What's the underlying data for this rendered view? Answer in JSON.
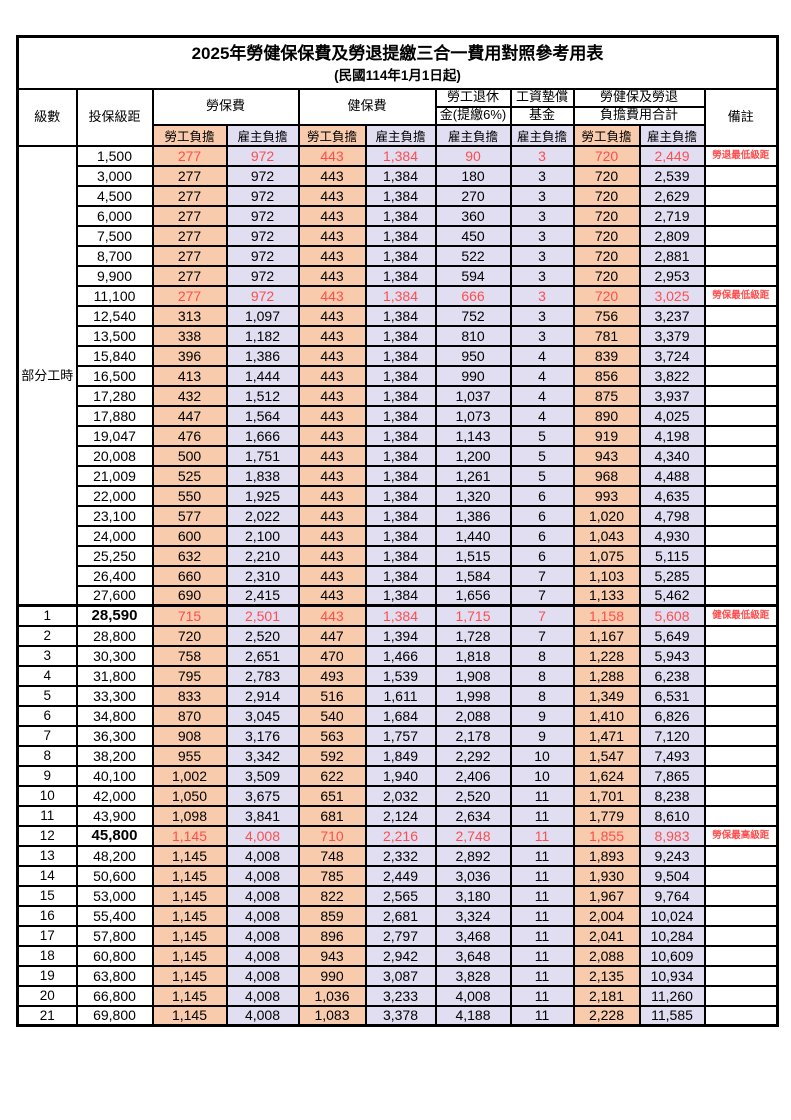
{
  "title": "2025年勞健保保費及勞退提繳三合一費用對照參考用表",
  "subtitle": "(民國114年1月1日起)",
  "columns": {
    "level": "級數",
    "bracket": "投保級距",
    "labor_ins": "勞保費",
    "health_ins": "健保費",
    "pension_l1": "勞工退休",
    "pension_l2": "金(提繳6%)",
    "wage_fund_l1": "工資墊償",
    "wage_fund_l2": "基金",
    "total_l1": "勞健保及勞退",
    "total_l2": "負擔費用合計",
    "note": "備註",
    "employee_share": "勞工負擔",
    "employer_share": "雇主負擔"
  },
  "part_time_label": "部分工時",
  "part_time_rowspan": 23,
  "colors": {
    "employee_bg": "#F8CBAD",
    "employer_bg": "#E1DEF2",
    "highlight_red": "#FF4D4D",
    "border": "#000000"
  },
  "rows": [
    {
      "level": "",
      "bracket": "1,500",
      "v": [
        "277",
        "972",
        "443",
        "1,384",
        "90",
        "3",
        "720",
        "2,449"
      ],
      "note": "勞退最低級距",
      "red": true
    },
    {
      "level": "",
      "bracket": "3,000",
      "v": [
        "277",
        "972",
        "443",
        "1,384",
        "180",
        "3",
        "720",
        "2,539"
      ],
      "note": ""
    },
    {
      "level": "",
      "bracket": "4,500",
      "v": [
        "277",
        "972",
        "443",
        "1,384",
        "270",
        "3",
        "720",
        "2,629"
      ],
      "note": ""
    },
    {
      "level": "",
      "bracket": "6,000",
      "v": [
        "277",
        "972",
        "443",
        "1,384",
        "360",
        "3",
        "720",
        "2,719"
      ],
      "note": ""
    },
    {
      "level": "",
      "bracket": "7,500",
      "v": [
        "277",
        "972",
        "443",
        "1,384",
        "450",
        "3",
        "720",
        "2,809"
      ],
      "note": ""
    },
    {
      "level": "",
      "bracket": "8,700",
      "v": [
        "277",
        "972",
        "443",
        "1,384",
        "522",
        "3",
        "720",
        "2,881"
      ],
      "note": ""
    },
    {
      "level": "",
      "bracket": "9,900",
      "v": [
        "277",
        "972",
        "443",
        "1,384",
        "594",
        "3",
        "720",
        "2,953"
      ],
      "note": ""
    },
    {
      "level": "",
      "bracket": "11,100",
      "v": [
        "277",
        "972",
        "443",
        "1,384",
        "666",
        "3",
        "720",
        "3,025"
      ],
      "note": "勞保最低級距",
      "red": true
    },
    {
      "level": "",
      "bracket": "12,540",
      "v": [
        "313",
        "1,097",
        "443",
        "1,384",
        "752",
        "3",
        "756",
        "3,237"
      ],
      "note": ""
    },
    {
      "level": "",
      "bracket": "13,500",
      "v": [
        "338",
        "1,182",
        "443",
        "1,384",
        "810",
        "3",
        "781",
        "3,379"
      ],
      "note": ""
    },
    {
      "level": "",
      "bracket": "15,840",
      "v": [
        "396",
        "1,386",
        "443",
        "1,384",
        "950",
        "4",
        "839",
        "3,724"
      ],
      "note": ""
    },
    {
      "level": "",
      "bracket": "16,500",
      "v": [
        "413",
        "1,444",
        "443",
        "1,384",
        "990",
        "4",
        "856",
        "3,822"
      ],
      "note": ""
    },
    {
      "level": "",
      "bracket": "17,280",
      "v": [
        "432",
        "1,512",
        "443",
        "1,384",
        "1,037",
        "4",
        "875",
        "3,937"
      ],
      "note": ""
    },
    {
      "level": "",
      "bracket": "17,880",
      "v": [
        "447",
        "1,564",
        "443",
        "1,384",
        "1,073",
        "4",
        "890",
        "4,025"
      ],
      "note": ""
    },
    {
      "level": "",
      "bracket": "19,047",
      "v": [
        "476",
        "1,666",
        "443",
        "1,384",
        "1,143",
        "5",
        "919",
        "4,198"
      ],
      "note": ""
    },
    {
      "level": "",
      "bracket": "20,008",
      "v": [
        "500",
        "1,751",
        "443",
        "1,384",
        "1,200",
        "5",
        "943",
        "4,340"
      ],
      "note": ""
    },
    {
      "level": "",
      "bracket": "21,009",
      "v": [
        "525",
        "1,838",
        "443",
        "1,384",
        "1,261",
        "5",
        "968",
        "4,488"
      ],
      "note": ""
    },
    {
      "level": "",
      "bracket": "22,000",
      "v": [
        "550",
        "1,925",
        "443",
        "1,384",
        "1,320",
        "6",
        "993",
        "4,635"
      ],
      "note": ""
    },
    {
      "level": "",
      "bracket": "23,100",
      "v": [
        "577",
        "2,022",
        "443",
        "1,384",
        "1,386",
        "6",
        "1,020",
        "4,798"
      ],
      "note": ""
    },
    {
      "level": "",
      "bracket": "24,000",
      "v": [
        "600",
        "2,100",
        "443",
        "1,384",
        "1,440",
        "6",
        "1,043",
        "4,930"
      ],
      "note": ""
    },
    {
      "level": "",
      "bracket": "25,250",
      "v": [
        "632",
        "2,210",
        "443",
        "1,384",
        "1,515",
        "6",
        "1,075",
        "5,115"
      ],
      "note": ""
    },
    {
      "level": "",
      "bracket": "26,400",
      "v": [
        "660",
        "2,310",
        "443",
        "1,384",
        "1,584",
        "7",
        "1,103",
        "5,285"
      ],
      "note": ""
    },
    {
      "level": "",
      "bracket": "27,600",
      "v": [
        "690",
        "2,415",
        "443",
        "1,384",
        "1,656",
        "7",
        "1,133",
        "5,462"
      ],
      "note": ""
    },
    {
      "level": "1",
      "bracket": "28,590",
      "v": [
        "715",
        "2,501",
        "443",
        "1,384",
        "1,715",
        "7",
        "1,158",
        "5,608"
      ],
      "note": "健保最低級距",
      "red": true,
      "bold": true,
      "sep": true
    },
    {
      "level": "2",
      "bracket": "28,800",
      "v": [
        "720",
        "2,520",
        "447",
        "1,394",
        "1,728",
        "7",
        "1,167",
        "5,649"
      ],
      "note": ""
    },
    {
      "level": "3",
      "bracket": "30,300",
      "v": [
        "758",
        "2,651",
        "470",
        "1,466",
        "1,818",
        "8",
        "1,228",
        "5,943"
      ],
      "note": ""
    },
    {
      "level": "4",
      "bracket": "31,800",
      "v": [
        "795",
        "2,783",
        "493",
        "1,539",
        "1,908",
        "8",
        "1,288",
        "6,238"
      ],
      "note": ""
    },
    {
      "level": "5",
      "bracket": "33,300",
      "v": [
        "833",
        "2,914",
        "516",
        "1,611",
        "1,998",
        "8",
        "1,349",
        "6,531"
      ],
      "note": ""
    },
    {
      "level": "6",
      "bracket": "34,800",
      "v": [
        "870",
        "3,045",
        "540",
        "1,684",
        "2,088",
        "9",
        "1,410",
        "6,826"
      ],
      "note": ""
    },
    {
      "level": "7",
      "bracket": "36,300",
      "v": [
        "908",
        "3,176",
        "563",
        "1,757",
        "2,178",
        "9",
        "1,471",
        "7,120"
      ],
      "note": ""
    },
    {
      "level": "8",
      "bracket": "38,200",
      "v": [
        "955",
        "3,342",
        "592",
        "1,849",
        "2,292",
        "10",
        "1,547",
        "7,493"
      ],
      "note": ""
    },
    {
      "level": "9",
      "bracket": "40,100",
      "v": [
        "1,002",
        "3,509",
        "622",
        "1,940",
        "2,406",
        "10",
        "1,624",
        "7,865"
      ],
      "note": ""
    },
    {
      "level": "10",
      "bracket": "42,000",
      "v": [
        "1,050",
        "3,675",
        "651",
        "2,032",
        "2,520",
        "11",
        "1,701",
        "8,238"
      ],
      "note": ""
    },
    {
      "level": "11",
      "bracket": "43,900",
      "v": [
        "1,098",
        "3,841",
        "681",
        "2,124",
        "2,634",
        "11",
        "1,779",
        "8,610"
      ],
      "note": ""
    },
    {
      "level": "12",
      "bracket": "45,800",
      "v": [
        "1,145",
        "4,008",
        "710",
        "2,216",
        "2,748",
        "11",
        "1,855",
        "8,983"
      ],
      "note": "勞保最高級距",
      "red": true,
      "bold": true
    },
    {
      "level": "13",
      "bracket": "48,200",
      "v": [
        "1,145",
        "4,008",
        "748",
        "2,332",
        "2,892",
        "11",
        "1,893",
        "9,243"
      ],
      "note": ""
    },
    {
      "level": "14",
      "bracket": "50,600",
      "v": [
        "1,145",
        "4,008",
        "785",
        "2,449",
        "3,036",
        "11",
        "1,930",
        "9,504"
      ],
      "note": ""
    },
    {
      "level": "15",
      "bracket": "53,000",
      "v": [
        "1,145",
        "4,008",
        "822",
        "2,565",
        "3,180",
        "11",
        "1,967",
        "9,764"
      ],
      "note": ""
    },
    {
      "level": "16",
      "bracket": "55,400",
      "v": [
        "1,145",
        "4,008",
        "859",
        "2,681",
        "3,324",
        "11",
        "2,004",
        "10,024"
      ],
      "note": ""
    },
    {
      "level": "17",
      "bracket": "57,800",
      "v": [
        "1,145",
        "4,008",
        "896",
        "2,797",
        "3,468",
        "11",
        "2,041",
        "10,284"
      ],
      "note": ""
    },
    {
      "level": "18",
      "bracket": "60,800",
      "v": [
        "1,145",
        "4,008",
        "943",
        "2,942",
        "3,648",
        "11",
        "2,088",
        "10,609"
      ],
      "note": ""
    },
    {
      "level": "19",
      "bracket": "63,800",
      "v": [
        "1,145",
        "4,008",
        "990",
        "3,087",
        "3,828",
        "11",
        "2,135",
        "10,934"
      ],
      "note": ""
    },
    {
      "level": "20",
      "bracket": "66,800",
      "v": [
        "1,145",
        "4,008",
        "1,036",
        "3,233",
        "4,008",
        "11",
        "2,181",
        "11,260"
      ],
      "note": ""
    },
    {
      "level": "21",
      "bracket": "69,800",
      "v": [
        "1,145",
        "4,008",
        "1,083",
        "3,378",
        "4,188",
        "11",
        "2,228",
        "11,585"
      ],
      "note": ""
    }
  ]
}
